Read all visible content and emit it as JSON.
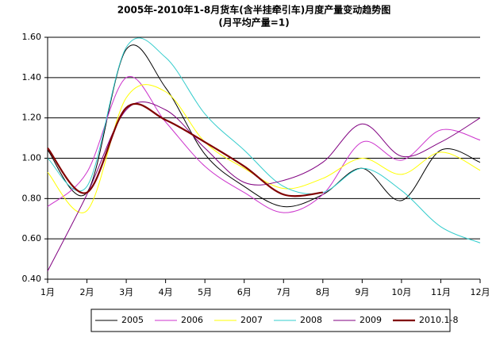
{
  "chart_data": {
    "type": "line",
    "title": "2005年-2010年1-8月货车(含半挂牵引车)月度产量变动趋势图",
    "subtitle": "(月平均产量=1)",
    "categories": [
      "1月",
      "2月",
      "3月",
      "4月",
      "5月",
      "6月",
      "7月",
      "8月",
      "9月",
      "10月",
      "11月",
      "12月"
    ],
    "series": [
      {
        "name": "2005",
        "color": "#000000",
        "values": [
          1.04,
          0.83,
          1.54,
          1.35,
          1.02,
          0.86,
          0.76,
          0.82,
          0.95,
          0.79,
          1.04,
          0.98
        ]
      },
      {
        "name": "2006",
        "color": "#cc33cc",
        "values": [
          0.76,
          0.93,
          1.4,
          1.18,
          0.96,
          0.83,
          0.73,
          0.82,
          1.08,
          0.99,
          1.14,
          1.09
        ]
      },
      {
        "name": "2007",
        "color": "#ffff00",
        "values": [
          0.93,
          0.74,
          1.3,
          1.33,
          1.08,
          0.95,
          0.85,
          0.9,
          1.0,
          0.92,
          1.03,
          0.94
        ]
      },
      {
        "name": "2008",
        "color": "#33cccc",
        "values": [
          1.0,
          0.86,
          1.55,
          1.5,
          1.22,
          1.04,
          0.86,
          0.83,
          0.95,
          0.84,
          0.66,
          0.58
        ]
      },
      {
        "name": "2009",
        "color": "#800080",
        "values": [
          0.44,
          0.82,
          1.24,
          1.24,
          1.05,
          0.88,
          0.89,
          0.98,
          1.17,
          1.01,
          1.08,
          1.2
        ]
      },
      {
        "name": "2010.1-8",
        "color": "#800000",
        "values": [
          1.05,
          0.83,
          1.25,
          1.19,
          1.08,
          0.96,
          0.82,
          0.83,
          null,
          null,
          null,
          null
        ]
      }
    ],
    "ylim": [
      0.4,
      1.6
    ],
    "yticks": [
      {
        "value": 0.4,
        "label": "0.40"
      },
      {
        "value": 0.6,
        "label": "0.60"
      },
      {
        "value": 0.8,
        "label": "0.80"
      },
      {
        "value": 1.0,
        "label": "1.00"
      },
      {
        "value": 1.2,
        "label": "1.20"
      },
      {
        "value": 1.4,
        "label": "1.40"
      },
      {
        "value": 1.6,
        "label": "1.60"
      }
    ],
    "grid": true,
    "legend": "bottom"
  }
}
